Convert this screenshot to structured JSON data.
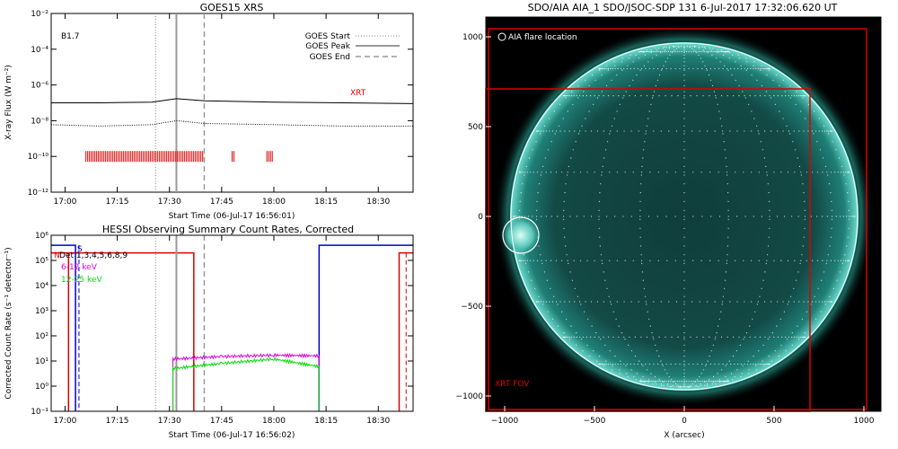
{
  "chart_data": [
    {
      "type": "line",
      "title": "GOES15 XRS",
      "xlabel": "Start Time (06-Jul-17 16:56:01)",
      "ylabel": "X-ray Flux (W m⁻²)",
      "x_ticks": [
        "17:00",
        "17:15",
        "17:30",
        "17:45",
        "18:00",
        "18:15",
        "18:30"
      ],
      "y_ticks": [
        "10⁻²",
        "10⁻⁴",
        "10⁻⁶",
        "10⁻⁸",
        "10⁻¹⁰",
        "10⁻¹²"
      ],
      "xlim": [
        "16:56:01",
        "18:40"
      ],
      "ylim": [
        1e-12,
        0.01
      ],
      "yscale": "log",
      "class_label": "B1.7",
      "legend": [
        {
          "label": "GOES Start",
          "style": "dotted"
        },
        {
          "label": "GOES Peak",
          "style": "solid"
        },
        {
          "label": "GOES End",
          "style": "dashed"
        }
      ],
      "markers": {
        "start": "17:26",
        "peak": "17:32",
        "end": "17:40"
      },
      "series": [
        {
          "style": "solid",
          "x": [
            "16:56",
            "17:10",
            "17:25",
            "17:32",
            "17:40",
            "18:00",
            "18:20",
            "18:40"
          ],
          "y": [
            1e-07,
            1e-07,
            1.1e-07,
            1.7e-07,
            1.3e-07,
            1.1e-07,
            1e-07,
            9e-08
          ]
        },
        {
          "style": "dotted",
          "x": [
            "16:56",
            "17:10",
            "17:25",
            "17:32",
            "17:40",
            "18:00",
            "18:20",
            "18:40"
          ],
          "y": [
            6e-09,
            5e-09,
            6e-09,
            1e-08,
            7e-09,
            6e-09,
            5e-09,
            5e-09
          ]
        }
      ],
      "xrt_label": "XRT",
      "xrt_color": "#dd0000",
      "xrt_intervals": [
        [
          "17:06",
          "17:40"
        ],
        [
          "17:48",
          "17:49"
        ],
        [
          "17:58",
          "18:00"
        ]
      ]
    },
    {
      "type": "line",
      "title": "HESSI Observing Summary Count Rates, Corrected",
      "xlabel": "Start Time (06-Jul-17 16:56:02)",
      "ylabel": "Corrected Count Rate (s⁻¹ detector⁻¹)",
      "x_ticks": [
        "17:00",
        "17:15",
        "17:30",
        "17:45",
        "18:00",
        "18:15",
        "18:30"
      ],
      "y_ticks": [
        "10⁶",
        "10⁵",
        "10⁴",
        "10³",
        "10²",
        "10¹",
        "10⁰",
        "10⁻¹"
      ],
      "ylim": [
        0.1,
        1000000.0
      ],
      "yscale": "log",
      "annotations": [
        "N",
        "S",
        "Det 1,3,4,5,6,8,9"
      ],
      "series": [
        {
          "name": "6-12 keV",
          "color": "#dd00dd",
          "x": [
            "17:31",
            "17:45",
            "18:00",
            "18:13"
          ],
          "y": [
            12,
            15,
            17,
            16
          ]
        },
        {
          "name": "12-25 keV",
          "color": "#00dd00",
          "x": [
            "17:31",
            "17:45",
            "18:00",
            "18:13"
          ],
          "y": [
            5,
            8,
            12,
            6
          ]
        }
      ],
      "flags": {
        "night_color": "#dd0000",
        "saa_color": "#0000cc"
      }
    }
  ],
  "image_panel": {
    "title": "SDO/AIA AIA_1 SDO/JSOC-SDP 131  6-Jul-2017 17:32:06.620 UT",
    "xlabel": "X (arcsec)",
    "x_ticks": [
      "−1000",
      "−500",
      "0",
      "500",
      "1000"
    ],
    "y_ticks": [
      "1000",
      "500",
      "0",
      "−500",
      "−1000"
    ],
    "flare_label": "AIA flare location",
    "fov_label": "XRT FOV",
    "disk_color": "#2aa598",
    "box_color": "#dd0000"
  }
}
